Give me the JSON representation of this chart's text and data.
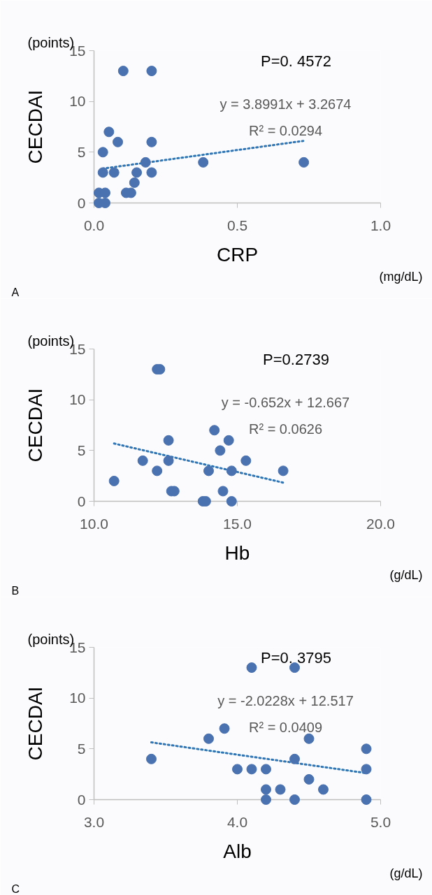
{
  "chart_data": [
    {
      "type": "scatter",
      "xlabel": "CRP",
      "ylabel": "CECDAI",
      "grid": false,
      "annotations": [
        "(points)",
        "P=0. 4572",
        "y = 3.8991x + 3.2674",
        "R² = 0.0294",
        "(mg/dL)",
        "A"
      ],
      "xlim": [
        0,
        1
      ],
      "ylim": [
        0,
        15
      ],
      "xticks": [
        {
          "value": 0,
          "label": "0.0"
        },
        {
          "value": 0.5,
          "label": "0.5"
        },
        {
          "value": 1,
          "label": "1.0"
        }
      ],
      "yticks": [
        0,
        5,
        10,
        15
      ],
      "series": [
        {
          "marker": "circle",
          "color": "#4a72b0",
          "x": [
            0.017,
            0.039,
            0.017,
            0.039,
            0.031,
            0.031,
            0.052,
            0.07,
            0.083,
            0.102,
            0.112,
            0.129,
            0.141,
            0.149,
            0.18,
            0.201,
            0.201,
            0.201,
            0.381,
            0.732
          ],
          "values": [
            0,
            0,
            1,
            1,
            3,
            5,
            7,
            3,
            6,
            13,
            1,
            1,
            2,
            3,
            4,
            13,
            6,
            3,
            4,
            4
          ]
        },
        {
          "type": "line",
          "line_style": "dotted",
          "color": "#2e75b6",
          "x": [
            0.03,
            0.73
          ],
          "values": [
            3.38,
            6.11
          ]
        }
      ]
    },
    {
      "type": "scatter",
      "xlabel": "Hb",
      "ylabel": "CECDAI",
      "grid": false,
      "annotations": [
        "(points)",
        "P=0.2739",
        "y = -0.652x + 12.667",
        "R² = 0.0626",
        "(g/dL)",
        "B"
      ],
      "xlim": [
        10,
        20
      ],
      "ylim": [
        0,
        15
      ],
      "xticks": [
        {
          "value": 10,
          "label": "10.0"
        },
        {
          "value": 15,
          "label": "15.0"
        },
        {
          "value": 20,
          "label": "20.0"
        }
      ],
      "yticks": [
        0,
        5,
        10,
        15
      ],
      "series": [
        {
          "marker": "circle",
          "color": "#4a72b0",
          "x": [
            10.7,
            11.7,
            12.2,
            12.2,
            12.3,
            12.6,
            12.6,
            12.7,
            12.8,
            13.8,
            13.9,
            14.0,
            14.2,
            14.4,
            14.5,
            14.7,
            14.8,
            14.8,
            15.3,
            16.6
          ],
          "values": [
            2,
            4,
            3,
            13,
            13,
            6,
            4,
            1,
            1,
            0,
            0,
            3,
            7,
            5,
            1,
            6,
            3,
            0,
            4,
            3
          ]
        },
        {
          "type": "line",
          "line_style": "dotted",
          "color": "#2e75b6",
          "x": [
            10.7,
            16.6
          ],
          "values": [
            5.69,
            1.84
          ]
        }
      ]
    },
    {
      "type": "scatter",
      "xlabel": "Alb",
      "ylabel": "CECDAI",
      "grid": false,
      "annotations": [
        "(points)",
        "P=0. 3795",
        "y = -2.0228x + 12.517",
        "R² = 0.0409",
        "(g/dL)",
        "C"
      ],
      "xlim": [
        3,
        5
      ],
      "ylim": [
        0,
        15
      ],
      "xticks": [
        {
          "value": 3,
          "label": "3.0"
        },
        {
          "value": 4,
          "label": "4.0"
        },
        {
          "value": 5,
          "label": "5.0"
        }
      ],
      "yticks": [
        0,
        5,
        10,
        15
      ],
      "series": [
        {
          "marker": "circle",
          "color": "#4a72b0",
          "x": [
            3.4,
            3.8,
            3.91,
            4.0,
            4.1,
            4.1,
            4.2,
            4.2,
            4.2,
            4.3,
            4.4,
            4.4,
            4.4,
            4.5,
            4.5,
            4.6,
            4.9,
            4.9,
            4.9
          ],
          "values": [
            4,
            6,
            7,
            3,
            3,
            13,
            3,
            1,
            0,
            1,
            13,
            4,
            0,
            6,
            2,
            1,
            5,
            3,
            0
          ]
        },
        {
          "type": "line",
          "line_style": "dotted",
          "color": "#2e75b6",
          "x": [
            3.4,
            4.9
          ],
          "values": [
            5.64,
            2.61
          ]
        }
      ]
    }
  ]
}
